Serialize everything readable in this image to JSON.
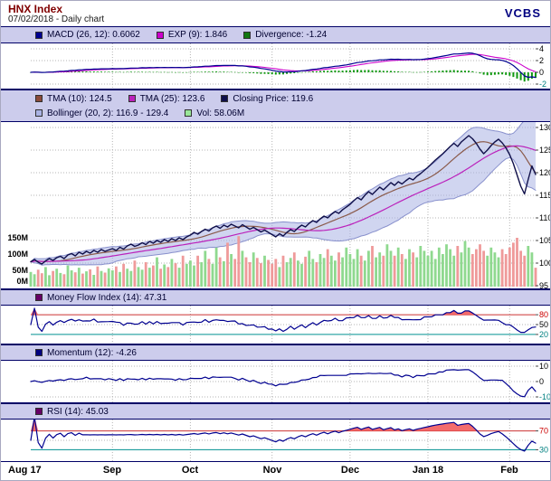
{
  "header": {
    "title": "HNX Index",
    "subtitle": "07/02/2018 - Daily chart",
    "brand": "VCBS"
  },
  "legends": {
    "macd": [
      {
        "label": "MACD (26, 12): 0.6062",
        "color": "#000090"
      },
      {
        "label": "EXP (9): 1.846",
        "color": "#cc00cc"
      },
      {
        "label": "Divergence: -1.24",
        "color": "#117711"
      }
    ],
    "price_row1": [
      {
        "label": "TMA (10): 124.5",
        "color": "#8a4a3a"
      },
      {
        "label": "TMA (25): 123.6",
        "color": "#bb22bb"
      },
      {
        "label": "Closing Price: 119.6",
        "color": "#10104a"
      }
    ],
    "price_row2": [
      {
        "label": "Bollinger (20, 2): 116.9 - 129.4",
        "color": "#aab2e4"
      },
      {
        "label": "Vol: 58.06M",
        "color": "#99e699"
      }
    ],
    "mfi": [
      {
        "label": "Money Flow Index (14): 47.31",
        "color": "#660066"
      }
    ],
    "momentum": [
      {
        "label": "Momentum (12): -4.26",
        "color": "#000080"
      }
    ],
    "rsi": [
      {
        "label": "RSI (14): 45.03",
        "color": "#660066"
      }
    ]
  },
  "chart_data": {
    "type": "line",
    "subtype": "multi-panel-financial",
    "title": "HNX Index - 07/02/2018 - Daily chart",
    "x": {
      "month_labels": [
        "Aug 17",
        "Sep",
        "Oct",
        "Nov",
        "Dec",
        "Jan 18",
        "Feb"
      ],
      "month_start_index": [
        0,
        22,
        43,
        65,
        86,
        107,
        129
      ],
      "n_points": 137
    },
    "series": [
      {
        "name": "close",
        "values": [
          100.3,
          100.8,
          100.2,
          99.8,
          100.5,
          101.0,
          100.6,
          101.2,
          101.5,
          101.0,
          101.8,
          102.1,
          101.6,
          102.4,
          102.0,
          102.6,
          102.2,
          102.8,
          102.4,
          103.0,
          102.6,
          102.9,
          103.2,
          102.8,
          103.5,
          103.1,
          103.8,
          104.2,
          103.7,
          104.0,
          104.5,
          104.1,
          104.8,
          104.4,
          105.0,
          104.6,
          105.2,
          104.8,
          105.4,
          105.0,
          105.6,
          105.2,
          105.8,
          106.2,
          106.8,
          106.4,
          107.0,
          107.5,
          107.1,
          107.8,
          108.2,
          107.7,
          108.4,
          108.0,
          108.6,
          108.2,
          107.8,
          108.5,
          108.0,
          107.5,
          107.9,
          107.4,
          106.9,
          107.3,
          106.8,
          106.3,
          105.8,
          106.5,
          106.0,
          106.8,
          107.4,
          107.0,
          107.8,
          108.4,
          108.0,
          108.8,
          109.4,
          109.0,
          109.8,
          110.4,
          110.0,
          110.8,
          111.4,
          111.0,
          111.8,
          112.4,
          113.0,
          113.8,
          114.5,
          114.0,
          115.0,
          115.8,
          115.2,
          116.0,
          116.8,
          116.2,
          117.0,
          117.8,
          117.2,
          118.0,
          117.5,
          118.2,
          118.8,
          118.4,
          119.2,
          119.8,
          120.5,
          121.2,
          122.0,
          122.8,
          123.5,
          124.2,
          125.0,
          125.8,
          126.5,
          125.8,
          126.8,
          127.5,
          128.2,
          127.5,
          126.5,
          125.2,
          124.2,
          125.0,
          126.0,
          126.8,
          127.4,
          126.6,
          125.5,
          124.0,
          122.0,
          119.5,
          117.0,
          115.3,
          118.5,
          121.5,
          119.6
        ]
      },
      {
        "name": "volume_millions",
        "values": [
          45,
          38,
          52,
          41,
          60,
          35,
          48,
          55,
          42,
          38,
          65,
          50,
          44,
          58,
          40,
          47,
          53,
          36,
          62,
          48,
          43,
          56,
          50,
          62,
          45,
          70,
          55,
          48,
          80,
          60,
          52,
          75,
          58,
          65,
          90,
          55,
          68,
          60,
          85,
          72,
          58,
          95,
          70,
          80,
          65,
          95,
          75,
          110,
          85,
          70,
          120,
          90,
          78,
          135,
          100,
          85,
          155,
          110,
          90,
          75,
          105,
          88,
          72,
          95,
          82,
          70,
          85,
          60,
          95,
          75,
          88,
          105,
          80,
          70,
          92,
          110,
          85,
          75,
          100,
          88,
          115,
          95,
          80,
          105,
          90,
          120,
          100,
          85,
          115,
          95,
          80,
          110,
          125,
          90,
          105,
          95,
          130,
          110,
          95,
          120,
          100,
          85,
          115,
          105,
          90,
          125,
          110,
          95,
          110,
          85,
          120,
          100,
          130,
          115,
          95,
          125,
          105,
          140,
          120,
          100,
          115,
          130,
          110,
          95,
          120,
          105,
          90,
          115,
          100,
          120,
          135,
          150,
          110,
          95,
          125,
          105,
          58
        ]
      }
    ],
    "indicators": {
      "tma_fast_period": 10,
      "tma_slow_period": 25,
      "bollinger": {
        "period": 20,
        "mult": 2
      },
      "macd": {
        "slow": 26,
        "fast": 12,
        "signal": 9
      },
      "mfi_period": 14,
      "momentum_period": 12,
      "rsi_period": 14
    },
    "panels": {
      "macd": {
        "yticks": [
          {
            "v": 4,
            "color": "#000000"
          },
          {
            "v": 2,
            "color": "#000000"
          },
          {
            "v": 0,
            "color": "#000000"
          },
          {
            "v": -2,
            "color": "#008080"
          }
        ]
      },
      "price": {
        "yticks": [
          {
            "v": 130
          },
          {
            "v": 125
          },
          {
            "v": 120
          },
          {
            "v": 115
          },
          {
            "v": 110
          },
          {
            "v": 105
          },
          {
            "v": 100
          },
          {
            "v": 95
          }
        ],
        "vol_ticks": [
          {
            "v": 150,
            "label": "150M"
          },
          {
            "v": 100,
            "label": "100M"
          },
          {
            "v": 50,
            "label": "50M"
          },
          {
            "v": 0,
            "label": "0M"
          }
        ]
      },
      "mfi": {
        "overbought": 80,
        "mid": 50,
        "oversold": 20,
        "yticks": [
          {
            "v": 80,
            "color": "#cc0000"
          },
          {
            "v": 50,
            "color": "#000000"
          },
          {
            "v": 20,
            "color": "#008080"
          }
        ]
      },
      "momentum": {
        "yticks": [
          {
            "v": 10,
            "color": "#000000"
          },
          {
            "v": 0,
            "color": "#000000"
          },
          {
            "v": -10,
            "color": "#008080"
          }
        ]
      },
      "rsi": {
        "overbought": 70,
        "mid": 50,
        "oversold": 30,
        "yticks": [
          {
            "v": 70,
            "color": "#cc0000"
          },
          {
            "v": 30,
            "color": "#008080"
          }
        ]
      }
    },
    "colors": {
      "close": "#10104a",
      "tma_fast": "#8a5a4a",
      "tma_slow": "#bb22bb",
      "boll_fill": "#aab2e4",
      "boll_edge": "#8890cc",
      "vol_up": "#8fd98f",
      "vol_down": "#ef9a9a",
      "macd": "#000090",
      "exp": "#cc00cc",
      "hist": "#119911",
      "osc": "#000090",
      "overbought_fill": "#f25c5c",
      "oversold_fill": "#55b8b0",
      "overbought_line": "#cc3333",
      "oversold_line": "#009090",
      "grid": "#b5b5b5",
      "panel_border": "#000066",
      "legend_bg": "#ccccec"
    }
  }
}
